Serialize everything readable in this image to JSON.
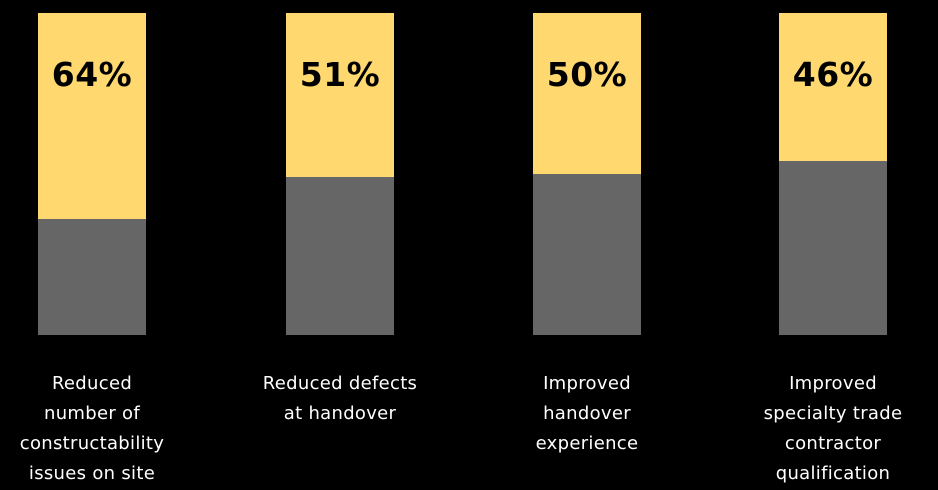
{
  "chart_data": {
    "type": "bar",
    "stacked": true,
    "categories": [
      "Reduced number of constructability issues on site",
      "Reduced defects at handover",
      "Improved handover experience",
      "Improved specialty trade contractor qualification"
    ],
    "category_label_lines": [
      [
        "Reduced",
        "number of",
        "constructability",
        "issues on site"
      ],
      [
        "Reduced defects",
        "at handover"
      ],
      [
        "Improved",
        "handover",
        "experience"
      ],
      [
        "Improved",
        "specialty trade",
        "contractor",
        "qualification"
      ]
    ],
    "values": [
      64,
      51,
      50,
      46
    ],
    "value_labels": [
      "64%",
      "51%",
      "50%",
      "46%"
    ],
    "ylim": [
      0,
      100
    ],
    "grid": false,
    "colors": {
      "highlight": "#FFD970",
      "remainder": "#666666",
      "background": "#000000",
      "text": "#FFFFFF"
    }
  }
}
